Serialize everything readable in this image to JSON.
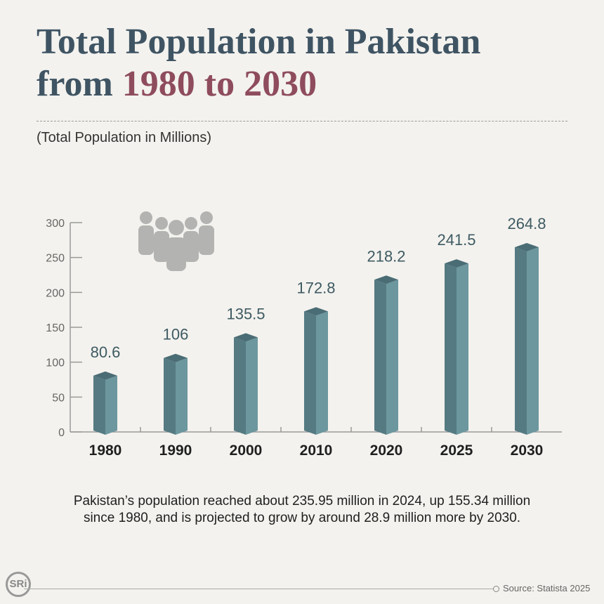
{
  "header": {
    "title_line1": "Total Population in Pakistan",
    "title_line2_prefix": "from ",
    "title_line2_highlight": "1980 to 2030",
    "subtitle": "(Total Population in Millions)"
  },
  "chart_data": {
    "type": "bar",
    "title": "Total Population in Pakistan from 1980 to 2030",
    "ylabel": "(Total Population in Millions)",
    "categories": [
      "1980",
      "1990",
      "2000",
      "2010",
      "2020",
      "2025",
      "2030"
    ],
    "values": [
      80.6,
      106,
      135.5,
      172.8,
      218.2,
      241.5,
      264.8
    ],
    "value_labels": [
      "80.6",
      "106",
      "135.5",
      "172.8",
      "218.2",
      "241.5",
      "264.8"
    ],
    "ylim": [
      0,
      300
    ],
    "yticks": [
      "0",
      "50",
      "100",
      "150",
      "200",
      "250",
      "300"
    ],
    "grid": false,
    "bar_style": "3d",
    "colors": {
      "bar_front": "#557a82",
      "bar_side": "#6c979e",
      "bar_top": "#4a6c74",
      "label": "#3e5a62"
    }
  },
  "icons": {
    "people": "people-group-icon"
  },
  "note": "Pakistan’s population reached about 235.95 million in 2024, up 155.34 million since 1980, and is projected to grow by around 28.9 million more by 2030.",
  "footer": {
    "logo": "SRi",
    "source": "Source: Statista 2025"
  },
  "colors": {
    "title": "#3f5463",
    "highlight": "#8e4c5d",
    "background": "#f3f2ee"
  }
}
